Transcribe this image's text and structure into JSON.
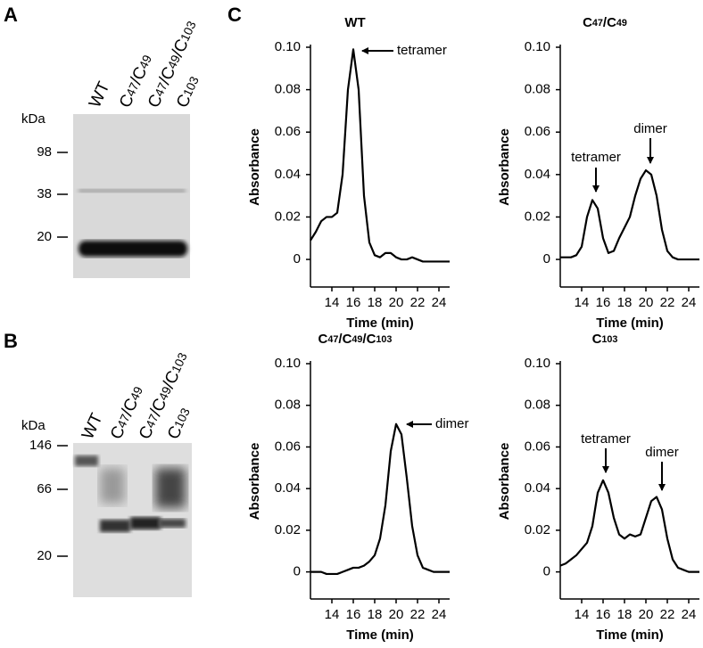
{
  "panel_labels": [
    "A",
    "B",
    "C"
  ],
  "gels": [
    {
      "lanes": [
        "WT",
        "C47/C49",
        "C47/C49/C103",
        "C103"
      ],
      "unit": "kDa",
      "markers": [
        "98",
        "38",
        "20"
      ]
    },
    {
      "lanes": [
        "WT",
        "C47/C49",
        "C47/C49/C103",
        "C103"
      ],
      "unit": "kDa",
      "markers": [
        "146",
        "66",
        "20"
      ]
    }
  ],
  "chart_data": [
    {
      "type": "line",
      "title": "WT",
      "x_label": "Time (min)",
      "y_label": "Absorbance",
      "x": [
        12,
        12.5,
        13,
        13.5,
        14,
        14.5,
        15,
        15.5,
        16,
        16.5,
        17,
        17.5,
        18,
        18.5,
        19,
        19.5,
        20,
        20.5,
        21,
        21.5,
        22,
        22.5,
        23,
        23.5,
        24,
        24.5,
        25
      ],
      "values": [
        0.009,
        0.013,
        0.018,
        0.02,
        0.02,
        0.022,
        0.04,
        0.08,
        0.099,
        0.08,
        0.03,
        0.008,
        0.002,
        0.001,
        0.003,
        0.003,
        0.001,
        0,
        0,
        0.001,
        0,
        -0.001,
        -0.001,
        -0.001,
        -0.001,
        -0.001,
        -0.001
      ],
      "color": "#000000",
      "xlim": [
        12,
        25
      ],
      "ylim": [
        -0.013,
        0.1
      ],
      "xticks": [
        14,
        16,
        18,
        20,
        22,
        24
      ],
      "yticks": [
        0,
        0.02,
        0.04,
        0.06,
        0.08,
        {
          "value": 0.1,
          "label": "0.10"
        }
      ],
      "annotations": [
        "tetramer"
      ]
    },
    {
      "type": "line",
      "title": "C47/C49",
      "x_label": "Time (min)",
      "y_label": "Absorbance",
      "x": [
        12,
        12.5,
        13,
        13.5,
        14,
        14.5,
        15,
        15.5,
        16,
        16.5,
        17,
        17.5,
        18,
        18.5,
        19,
        19.5,
        20,
        20.5,
        21,
        21.5,
        22,
        22.5,
        23,
        23.5,
        24,
        24.5,
        25
      ],
      "values": [
        0.001,
        0.001,
        0.001,
        0.002,
        0.006,
        0.02,
        0.028,
        0.024,
        0.01,
        0.003,
        0.004,
        0.01,
        0.015,
        0.02,
        0.03,
        0.038,
        0.042,
        0.04,
        0.03,
        0.014,
        0.004,
        0.001,
        0,
        0,
        0,
        0,
        0
      ],
      "color": "#000000",
      "xlim": [
        12,
        25
      ],
      "ylim": [
        -0.013,
        0.1
      ],
      "xticks": [
        14,
        16,
        18,
        20,
        22,
        24
      ],
      "yticks": [
        0,
        0.02,
        0.04,
        0.06,
        0.08,
        {
          "value": 0.1,
          "label": "0.10"
        }
      ],
      "annotations": [
        "tetramer",
        "dimer"
      ]
    },
    {
      "type": "line",
      "title": "C47/C49/C103",
      "x_label": "Time (min)",
      "y_label": "Absorbance",
      "x": [
        12,
        12.5,
        13,
        13.5,
        14,
        14.5,
        15,
        15.5,
        16,
        16.5,
        17,
        17.5,
        18,
        18.5,
        19,
        19.5,
        20,
        20.5,
        21,
        21.5,
        22,
        22.5,
        23,
        23.5,
        24,
        24.5,
        25
      ],
      "values": [
        0,
        0,
        0,
        -0.001,
        -0.001,
        -0.001,
        0,
        0.001,
        0.002,
        0.002,
        0.003,
        0.005,
        0.008,
        0.016,
        0.032,
        0.058,
        0.071,
        0.066,
        0.045,
        0.022,
        0.008,
        0.002,
        0.001,
        0,
        0,
        0,
        0
      ],
      "color": "#000000",
      "xlim": [
        12,
        25
      ],
      "ylim": [
        -0.013,
        0.1
      ],
      "xticks": [
        14,
        16,
        18,
        20,
        22,
        24
      ],
      "yticks": [
        0,
        0.02,
        0.04,
        0.06,
        0.08,
        {
          "value": 0.1,
          "label": "0.10"
        }
      ],
      "annotations": [
        "dimer"
      ]
    },
    {
      "type": "line",
      "title": "C103",
      "x_label": "Time (min)",
      "y_label": "Absorbance",
      "x": [
        12,
        12.5,
        13,
        13.5,
        14,
        14.5,
        15,
        15.5,
        16,
        16.5,
        17,
        17.5,
        18,
        18.5,
        19,
        19.5,
        20,
        20.5,
        21,
        21.5,
        22,
        22.5,
        23,
        23.5,
        24,
        24.5,
        25
      ],
      "values": [
        0.003,
        0.004,
        0.006,
        0.008,
        0.011,
        0.014,
        0.022,
        0.038,
        0.044,
        0.038,
        0.026,
        0.018,
        0.016,
        0.018,
        0.017,
        0.018,
        0.026,
        0.034,
        0.036,
        0.03,
        0.016,
        0.006,
        0.002,
        0.001,
        0,
        0,
        0
      ],
      "color": "#000000",
      "xlim": [
        12,
        25
      ],
      "ylim": [
        -0.013,
        0.1
      ],
      "xticks": [
        14,
        16,
        18,
        20,
        22,
        24
      ],
      "yticks": [
        0,
        0.02,
        0.04,
        0.06,
        0.08,
        {
          "value": 0.1,
          "label": "0.10"
        }
      ],
      "annotations": [
        "tetramer",
        "dimer"
      ]
    }
  ]
}
